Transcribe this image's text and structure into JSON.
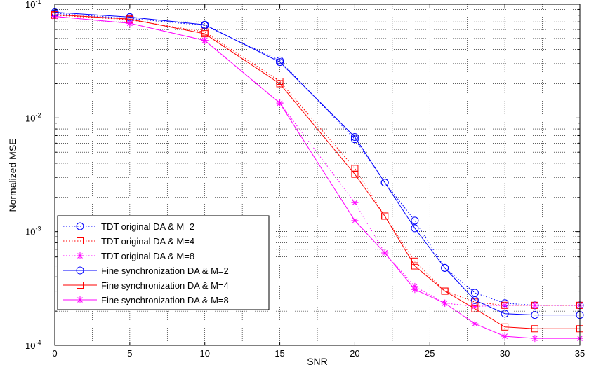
{
  "chart_data": {
    "type": "line",
    "title": "",
    "xlabel": "SNR",
    "ylabel": "Normalized MSE",
    "xlim": [
      0,
      35
    ],
    "ylim": [
      0.0001,
      0.1
    ],
    "yscale": "log",
    "grid": true,
    "legend_position": "bottom-left",
    "x_ticks": [
      "0",
      "5",
      "10",
      "15",
      "20",
      "25",
      "30",
      "35"
    ],
    "y_ticks": [
      {
        "value": 0.1,
        "base": "10",
        "exp": "-1"
      },
      {
        "value": 0.01,
        "base": "10",
        "exp": "-2"
      },
      {
        "value": 0.001,
        "base": "10",
        "exp": "-3"
      },
      {
        "value": 0.0001,
        "base": "10",
        "exp": "-4"
      }
    ],
    "x": [
      0,
      5,
      10,
      15,
      20,
      22,
      24,
      26,
      28,
      30,
      32,
      35
    ],
    "series": [
      {
        "name": "TDT original DA & M=2",
        "color": "#0000ff",
        "line": "dotted",
        "marker": "circle",
        "values": [
          0.083,
          0.075,
          0.065,
          0.032,
          0.0065,
          0.0027,
          0.00125,
          0.00048,
          0.00029,
          0.000235,
          0.000225,
          0.000225
        ]
      },
      {
        "name": "TDT original DA & M=4",
        "color": "#ff0000",
        "line": "dotted",
        "marker": "square",
        "values": [
          0.08,
          0.073,
          0.057,
          0.021,
          0.0036,
          0.00137,
          0.00055,
          0.0003,
          0.00024,
          0.000225,
          0.000225,
          0.000225
        ]
      },
      {
        "name": "TDT original DA & M=8",
        "color": "#ff00ff",
        "line": "dotted",
        "marker": "star",
        "values": [
          0.078,
          0.068,
          0.048,
          0.0135,
          0.0018,
          0.00065,
          0.00033,
          0.000235,
          0.00022,
          0.000225,
          0.000225,
          0.000225
        ]
      },
      {
        "name": "Fine synchronization DA & M=2",
        "color": "#0000ff",
        "line": "solid",
        "marker": "circle",
        "values": [
          0.085,
          0.077,
          0.066,
          0.031,
          0.0068,
          0.0027,
          0.00107,
          0.00048,
          0.00025,
          0.00019,
          0.000185,
          0.000185
        ]
      },
      {
        "name": "Fine synchronization DA & M=4",
        "color": "#ff0000",
        "line": "solid",
        "marker": "square",
        "values": [
          0.081,
          0.074,
          0.055,
          0.02,
          0.0032,
          0.00137,
          0.0005,
          0.0003,
          0.00021,
          0.000145,
          0.00014,
          0.00014
        ]
      },
      {
        "name": "Fine synchronization DA & M=8",
        "color": "#ff00ff",
        "line": "solid",
        "marker": "star",
        "values": [
          0.078,
          0.068,
          0.048,
          0.0135,
          0.00125,
          0.00065,
          0.00031,
          0.000235,
          0.000155,
          0.00012,
          0.000115,
          0.000115
        ]
      }
    ]
  }
}
